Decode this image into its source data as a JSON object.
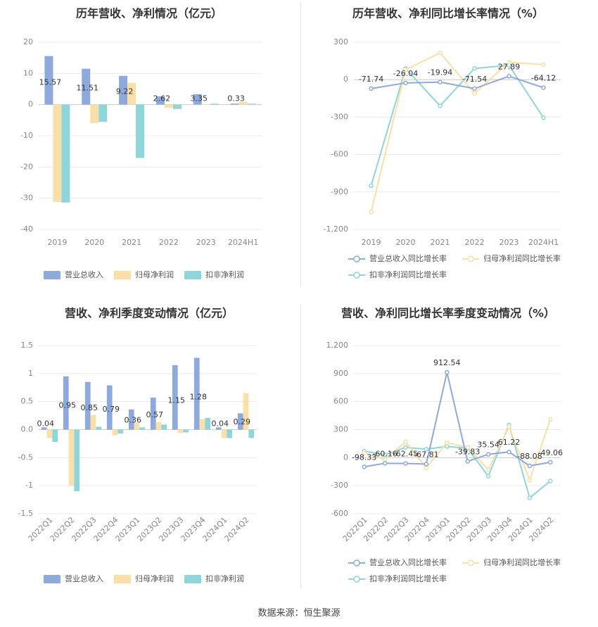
{
  "source": "数据来源：恒生聚源",
  "colors": {
    "revenue": "#8eaadc",
    "netprofit": "#fbdfa8",
    "deducted": "#8ed6da",
    "grid": "#e9e9e9",
    "axis_text": "#888888",
    "title": "#333333"
  },
  "chart_data": [
    {
      "id": "annual-amount",
      "type": "bar",
      "title": "历年营收、净利情况（亿元）",
      "categories": [
        "2019",
        "2020",
        "2021",
        "2022",
        "2023",
        "2024H1"
      ],
      "ylim": [
        -40,
        20
      ],
      "yticks": [
        20,
        10,
        0,
        -10,
        -20,
        -30,
        -40
      ],
      "ytick_labels": [
        "20",
        "10",
        "0",
        "-10",
        "-20",
        "-30",
        "-40"
      ],
      "label_series": 0,
      "series": [
        {
          "name": "营业总收入",
          "color": "#8eaadc",
          "values": [
            15.57,
            11.51,
            9.22,
            2.62,
            3.35,
            0.33
          ],
          "labels": [
            "15.57",
            "11.51",
            "9.22",
            "2.62",
            "3.35",
            "0.33"
          ]
        },
        {
          "name": "归母净利润",
          "color": "#fbdfa8",
          "values": [
            -31.2,
            -5.9,
            7.0,
            -1.0,
            0.2,
            0.9
          ]
        },
        {
          "name": "扣非净利润",
          "color": "#8ed6da",
          "values": [
            -31.4,
            -5.5,
            -17.1,
            -1.4,
            0.3,
            0.3
          ]
        }
      ],
      "grid": true,
      "legend_position": "bottom"
    },
    {
      "id": "annual-growth",
      "type": "line",
      "title": "历年营收、净利同比增长率情况（%）",
      "categories": [
        "2019",
        "2020",
        "2021",
        "2022",
        "2023",
        "2024H1"
      ],
      "ylim": [
        -1200,
        300
      ],
      "yticks": [
        300,
        0,
        -300,
        -600,
        -900,
        -1200
      ],
      "ytick_labels": [
        "300",
        "0",
        "-300",
        "-600",
        "-900",
        "-1,200"
      ],
      "label_series": 0,
      "series": [
        {
          "name": "营业总收入同比增长率",
          "color": "#8eaadc",
          "values": [
            -71.74,
            -26.04,
            -19.94,
            -71.54,
            27.89,
            -64.12
          ],
          "labels": [
            "-71.74",
            "-26.04",
            "-19.94",
            "-71.54",
            "27.89",
            "-64.12"
          ]
        },
        {
          "name": "归母净利润同比增长率",
          "color": "#fbdfa8",
          "values": [
            -1060,
            80,
            215,
            -110,
            140,
            120
          ]
        },
        {
          "name": "扣非净利润同比增长率",
          "color": "#8ed6da",
          "values": [
            -850,
            90,
            -210,
            90,
            115,
            -305
          ]
        }
      ],
      "grid": true,
      "legend_position": "bottom"
    },
    {
      "id": "quarterly-amount",
      "type": "bar",
      "title": "营收、净利季度变动情况（亿元）",
      "categories": [
        "2022Q1",
        "2022Q2",
        "2022Q3",
        "2022Q4",
        "2023Q1",
        "2023Q2",
        "2023Q3",
        "2023Q4",
        "2024Q1",
        "2024Q2"
      ],
      "ylim": [
        -1.5,
        1.5
      ],
      "yticks": [
        1.5,
        1,
        0.5,
        0,
        -0.5,
        -1,
        -1.5
      ],
      "ytick_labels": [
        "1.5",
        "1",
        "0.5",
        "0.0",
        "-0.5",
        "-1",
        "-1.5"
      ],
      "label_series": 0,
      "series": [
        {
          "name": "营业总收入",
          "color": "#8eaadc",
          "values": [
            0.04,
            0.95,
            0.85,
            0.79,
            0.36,
            0.57,
            1.15,
            1.28,
            0.04,
            0.29
          ],
          "labels": [
            "0.04",
            "0.95",
            "0.85",
            "0.79",
            "0.36",
            "0.57",
            "1.15",
            "1.28",
            "0.04",
            "0.29"
          ]
        },
        {
          "name": "归母净利润",
          "color": "#fbdfa8",
          "values": [
            -0.15,
            -1.0,
            0.26,
            -0.1,
            0.12,
            0.13,
            -0.06,
            0.19,
            -0.15,
            0.65
          ]
        },
        {
          "name": "扣非净利润",
          "color": "#8ed6da",
          "values": [
            -0.22,
            -1.1,
            0.05,
            -0.07,
            0.04,
            0.09,
            -0.05,
            0.21,
            -0.15,
            -0.15
          ]
        }
      ],
      "grid": true,
      "legend_position": "bottom"
    },
    {
      "id": "quarterly-growth",
      "type": "line",
      "title": "营收、净利同比增长率季度变动情况（%）",
      "categories": [
        "2022Q1",
        "2022Q2",
        "2022Q3",
        "2022Q4",
        "2023Q1",
        "2023Q2",
        "2023Q3",
        "2023Q4",
        "2024Q1",
        "2024Q2"
      ],
      "ylim": [
        -600,
        1200
      ],
      "yticks": [
        1200,
        900,
        600,
        300,
        0,
        -300,
        -600
      ],
      "ytick_labels": [
        "1,200",
        "900",
        "600",
        "300",
        "0",
        "-300",
        "-600"
      ],
      "label_series": 0,
      "series": [
        {
          "name": "营业总收入同比增长率",
          "color": "#8eaadc",
          "values": [
            -98.33,
            -60.16,
            -62.45,
            -67.81,
            912.54,
            -39.83,
            35.54,
            61.22,
            -88.08,
            -49.06
          ],
          "labels": [
            "-98.33",
            "-60.16",
            "-62.45",
            "-67.81",
            "912.54",
            "-39.83",
            "35.54",
            "61.22",
            "-88.08",
            "-49.06"
          ]
        },
        {
          "name": "归母净利润同比增长率",
          "color": "#fbdfa8",
          "values": [
            50,
            -20,
            170,
            -110,
            160,
            110,
            -130,
            330,
            -240,
            410
          ]
        },
        {
          "name": "扣非净利润同比增长率",
          "color": "#8ed6da",
          "values": [
            70,
            30,
            110,
            90,
            120,
            100,
            -200,
            350,
            -430,
            -250
          ]
        }
      ],
      "grid": true,
      "legend_position": "bottom"
    }
  ]
}
